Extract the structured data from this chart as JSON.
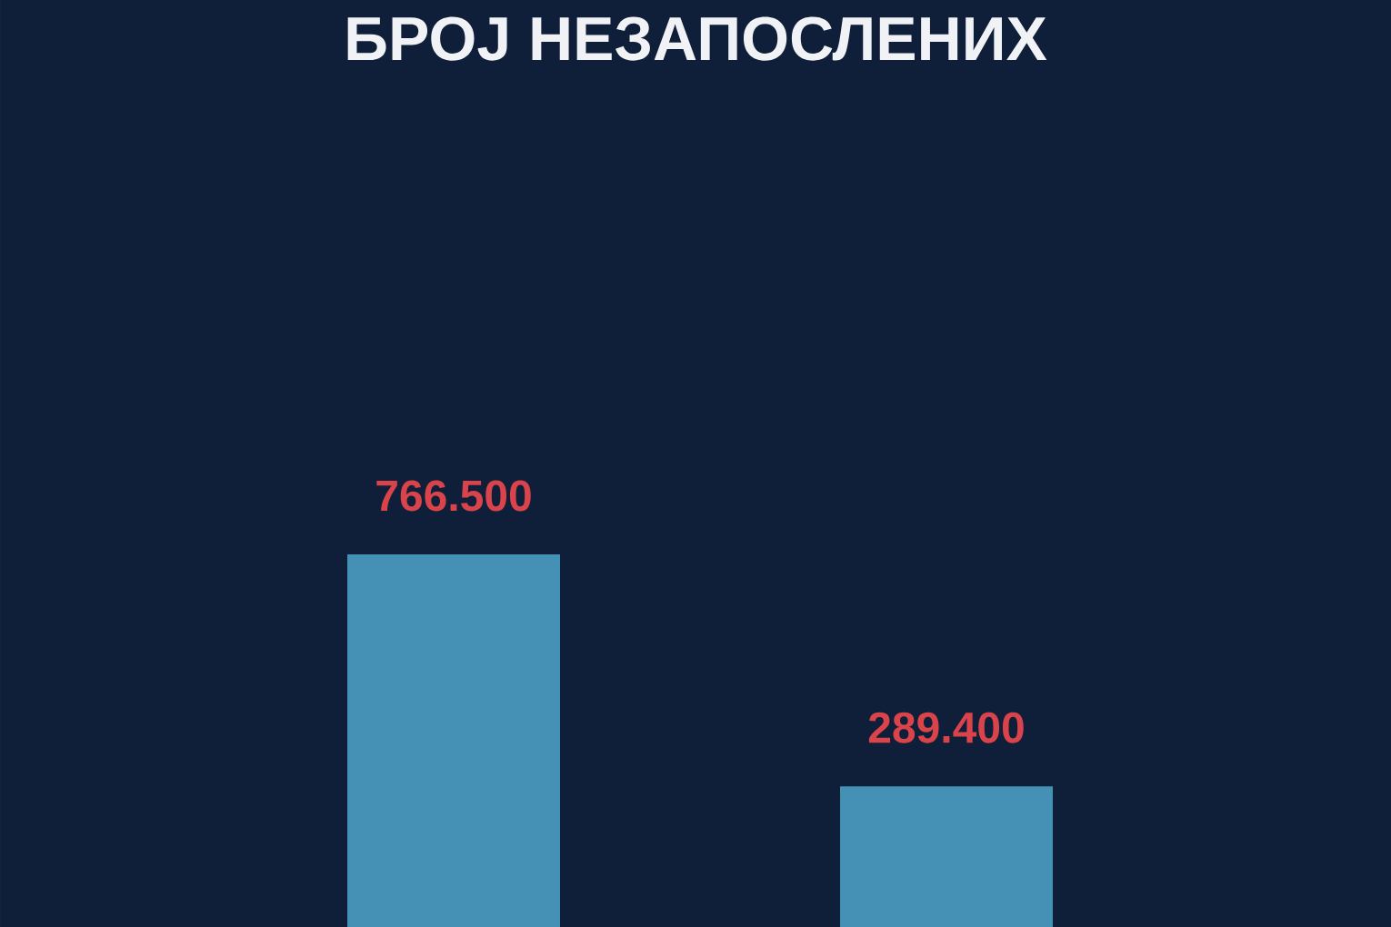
{
  "chart_data": {
    "type": "bar",
    "title": "БРОЈ НЕЗАПОСЛЕНИХ",
    "categories": [
      null,
      null
    ],
    "values": [
      766500,
      289400
    ],
    "value_labels": [
      "766.500",
      "289.400"
    ],
    "color": "#4590b5",
    "tick_labels": false
  }
}
